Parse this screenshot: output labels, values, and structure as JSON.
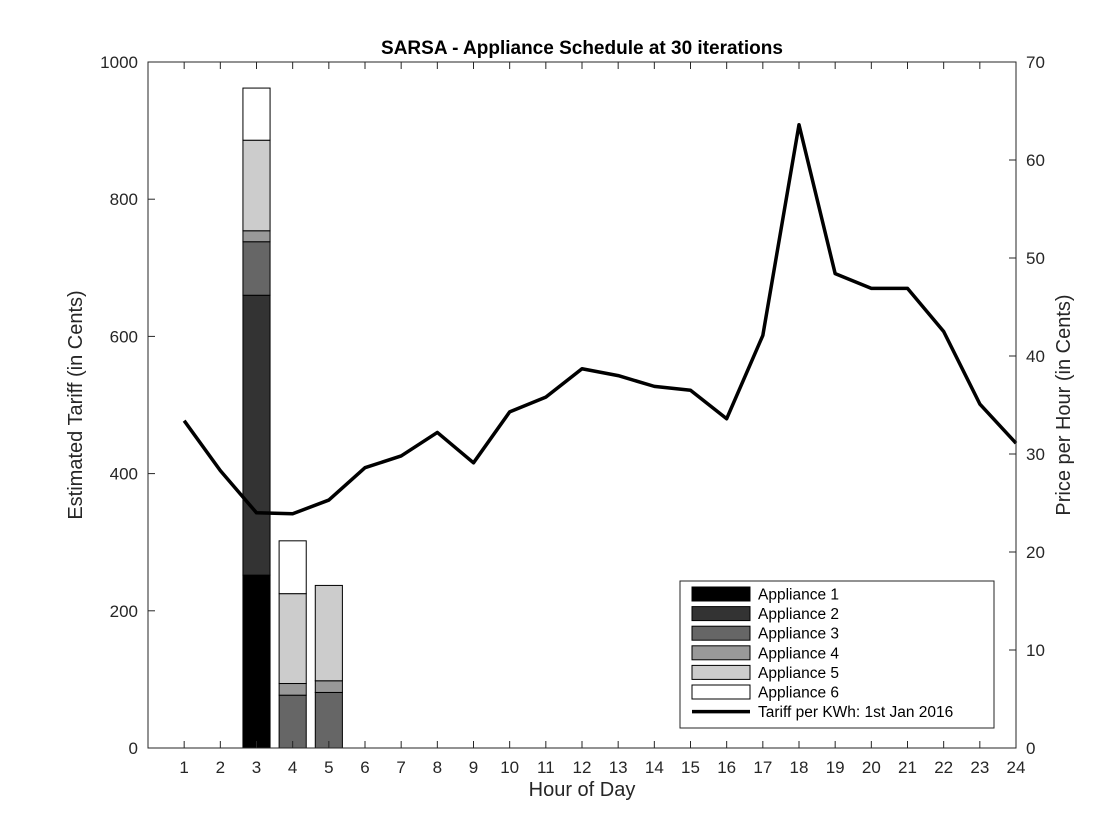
{
  "chart_data": {
    "type": "bar",
    "title": "SARSA - Appliance Schedule at 30 iterations",
    "xlabel": "Hour of Day",
    "ylabel_left": "Estimated Tariff (in Cents)",
    "ylabel_right": "Price per Hour (in Cents)",
    "x": [
      1,
      2,
      3,
      4,
      5,
      6,
      7,
      8,
      9,
      10,
      11,
      12,
      13,
      14,
      15,
      16,
      17,
      18,
      19,
      20,
      21,
      22,
      23,
      24
    ],
    "xlim": [
      0,
      24
    ],
    "ylim_left": [
      0,
      1000
    ],
    "yticks_left": [
      0,
      200,
      400,
      600,
      800,
      1000
    ],
    "ylim_right": [
      0,
      70
    ],
    "yticks_right": [
      0,
      10,
      20,
      30,
      40,
      50,
      60,
      70
    ],
    "stacked": true,
    "grid": false,
    "legend_position": "bottom-right",
    "bar_series": [
      {
        "name": "Appliance 1",
        "color": "#000000",
        "values": {
          "3": 252,
          "4": 0,
          "5": 0
        }
      },
      {
        "name": "Appliance 2",
        "color": "#333333",
        "values": {
          "3": 408,
          "4": 0,
          "5": 0
        }
      },
      {
        "name": "Appliance 3",
        "color": "#666666",
        "values": {
          "3": 78,
          "4": 77,
          "5": 81
        }
      },
      {
        "name": "Appliance 4",
        "color": "#999999",
        "values": {
          "3": 16,
          "4": 17,
          "5": 17
        }
      },
      {
        "name": "Appliance 5",
        "color": "#cccccc",
        "values": {
          "3": 132,
          "4": 131,
          "5": 139
        }
      },
      {
        "name": "Appliance 6",
        "color": "#ffffff",
        "values": {
          "3": 76,
          "4": 77,
          "5": 0
        }
      }
    ],
    "line_series": {
      "name": "Tariff per KWh: 1st Jan 2016",
      "color": "#000000",
      "axis": "right",
      "values": [
        33.4,
        28.3,
        24.0,
        23.9,
        25.3,
        28.6,
        29.8,
        32.2,
        29.1,
        34.3,
        35.8,
        38.7,
        38.0,
        36.9,
        36.5,
        33.6,
        42.1,
        63.6,
        48.4,
        46.9,
        46.9,
        42.5,
        35.1,
        31.1
      ]
    }
  }
}
